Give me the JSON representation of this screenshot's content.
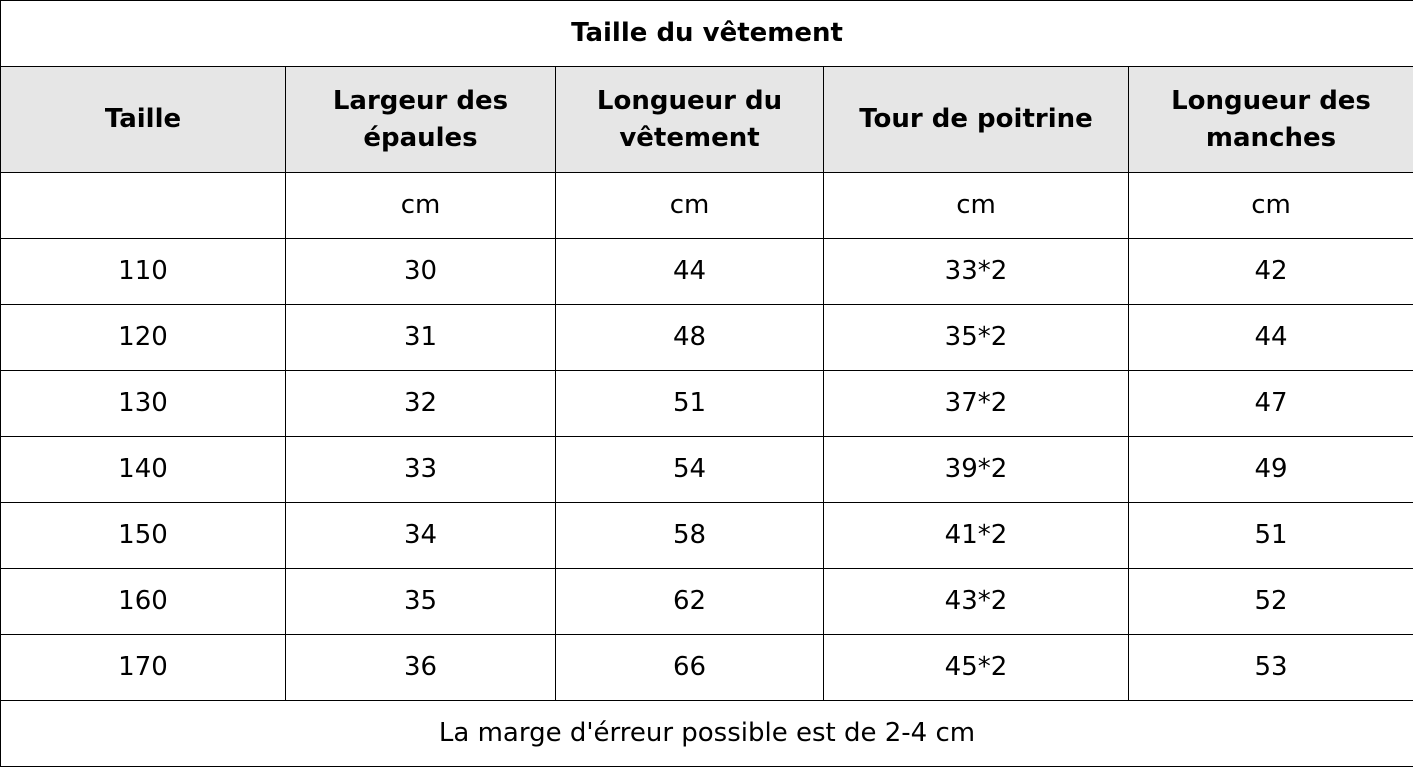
{
  "table": {
    "title": "Taille du vêtement",
    "headers": [
      "Taille",
      "Largeur des épaules",
      "Longueur du vêtement",
      "Tour de poitrine",
      "Longueur des manches"
    ],
    "header_lines": [
      [
        "Taille"
      ],
      [
        "Largeur des",
        "épaules"
      ],
      [
        "Longueur du",
        "vêtement"
      ],
      [
        "Tour de poitrine"
      ],
      [
        "Longueur des",
        "manches"
      ]
    ],
    "units": [
      "",
      "cm",
      "cm",
      "cm",
      "cm"
    ],
    "rows": [
      [
        "110",
        "30",
        "44",
        "33*2",
        "42"
      ],
      [
        "120",
        "31",
        "48",
        "35*2",
        "44"
      ],
      [
        "130",
        "32",
        "51",
        "37*2",
        "47"
      ],
      [
        "140",
        "33",
        "54",
        "39*2",
        "49"
      ],
      [
        "150",
        "34",
        "58",
        "41*2",
        "51"
      ],
      [
        "160",
        "35",
        "62",
        "43*2",
        "52"
      ],
      [
        "170",
        "36",
        "66",
        "45*2",
        "53"
      ]
    ],
    "note": "La marge d'érreur possible est de 2-4 cm"
  }
}
